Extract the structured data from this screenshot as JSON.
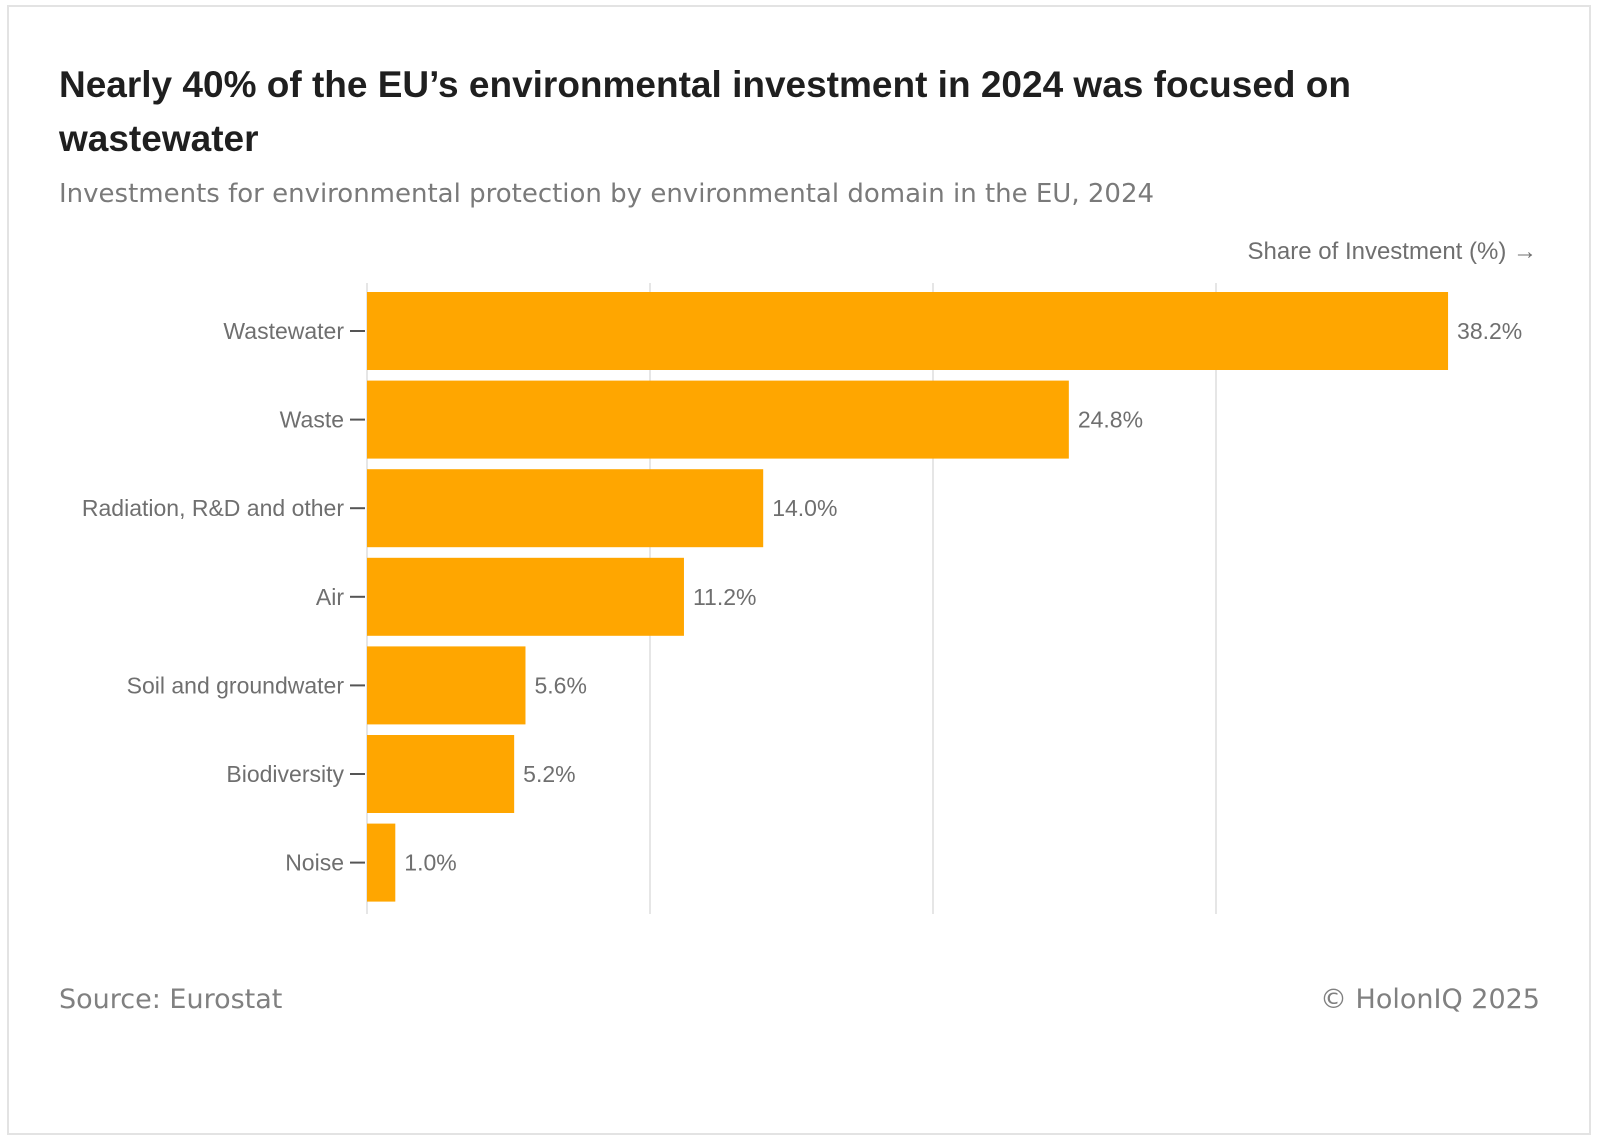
{
  "header": {
    "title": "Nearly 40% of the EU’s environmental investment in 2024 was focused on wastewater",
    "subtitle": "Investments for environmental protection by environmental domain in the EU, 2024"
  },
  "footer": {
    "source": "Source: Eurostat",
    "copyright": "© HolonIQ 2025"
  },
  "colors": {
    "bar": "#ffa600",
    "grid": "#e6e6e6",
    "label": "#6f6f6f",
    "tick": "#555555"
  },
  "chart_data": {
    "type": "bar",
    "orientation": "horizontal",
    "title": "Nearly 40% of the EU’s environmental investment in 2024 was focused on wastewater",
    "subtitle": "Investments for environmental protection by environmental domain in the EU, 2024",
    "xlabel": "Share of Investment (%) →",
    "ylabel": "",
    "categories": [
      "Wastewater",
      "Waste",
      "Radiation, R&D and other",
      "Air",
      "Soil and groundwater",
      "Biodiversity",
      "Noise"
    ],
    "values": [
      38.2,
      24.8,
      14.0,
      11.2,
      5.6,
      5.2,
      1.0
    ],
    "data_labels": [
      "38.2%",
      "24.8%",
      "14.0%",
      "11.2%",
      "5.6%",
      "5.2%",
      "1.0%"
    ],
    "xlim": [
      0,
      40
    ],
    "gridlines_at": [
      0,
      10,
      20,
      30
    ],
    "grid": true,
    "legend": "none"
  }
}
